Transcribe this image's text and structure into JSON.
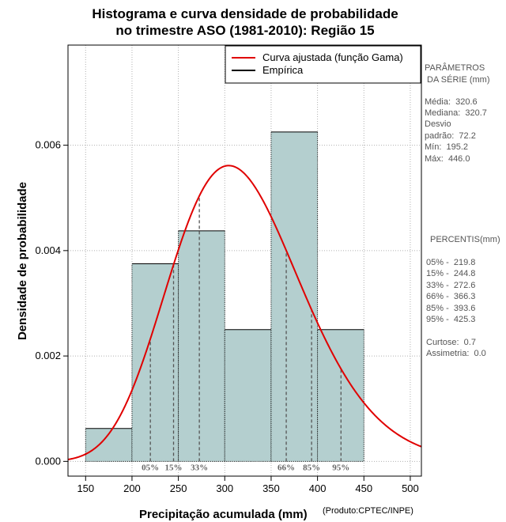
{
  "chart_data": {
    "type": "bar",
    "title_line1": "Histograma e curva densidade de probabilidade",
    "title_line2": "no trimestre ASO (1981-2010): Região 15",
    "xlabel": "Precipitação acumulada (mm)",
    "ylabel": "Densidade de probabilidade",
    "credit": "(Produto:CPTEC/INPE)",
    "xlim": [
      131,
      512
    ],
    "ylim": [
      -0.00028,
      0.0079
    ],
    "xticks": [
      "150",
      "200",
      "250",
      "300",
      "350",
      "400",
      "450",
      "500"
    ],
    "yticks": [
      "0.000",
      "0.002",
      "0.004",
      "0.006"
    ],
    "bins": [
      {
        "from": 150,
        "to": 200,
        "density": 0.000625
      },
      {
        "from": 200,
        "to": 250,
        "density": 0.00375
      },
      {
        "from": 250,
        "to": 300,
        "density": 0.004375
      },
      {
        "from": 300,
        "to": 350,
        "density": 0.0025
      },
      {
        "from": 350,
        "to": 400,
        "density": 0.00625
      },
      {
        "from": 400,
        "to": 450,
        "density": 0.0025
      }
    ],
    "gamma_fit": {
      "shape": 19.5,
      "scale": 16.45
    },
    "percentile_lines": [
      {
        "label": "05%",
        "x": 219.8
      },
      {
        "label": "15%",
        "x": 244.8
      },
      {
        "label": "33%",
        "x": 272.6
      },
      {
        "label": "66%",
        "x": 366.3
      },
      {
        "label": "85%",
        "x": 393.6
      },
      {
        "label": "95%",
        "x": 425.3
      }
    ],
    "legend": {
      "position": "top-right",
      "items": [
        {
          "label": "Curva ajustada (função Gama)",
          "color": "#e00000"
        },
        {
          "label": "Empírica",
          "color": "#000000"
        }
      ]
    },
    "colors": {
      "bar_fill": "#b4cfcf",
      "curve": "#e00000",
      "grid": "#b0b0b0",
      "percentile": "#555555"
    }
  },
  "side_panel": {
    "stats_title_1": "PARÂMETROS",
    "stats_title_2": " DA SÉRIE (mm)",
    "media": "Média:  320.6",
    "mediana": "Mediana:  320.7",
    "desvio_1": "Desvio",
    "desvio_2": "padrão:  72.2",
    "min": "Mín:  195.2",
    "max": "Máx:  446.0",
    "percentis_title": "PERCENTIS(mm)",
    "p05": "05% -  219.8",
    "p15": "15% -  244.8",
    "p33": "33% -  272.6",
    "p66": "66% -  366.3",
    "p85": "85% -  393.6",
    "p95": "95% -  425.3",
    "curtose": "Curtose:  0.7",
    "assimetria": "Assimetria:  0.0"
  }
}
